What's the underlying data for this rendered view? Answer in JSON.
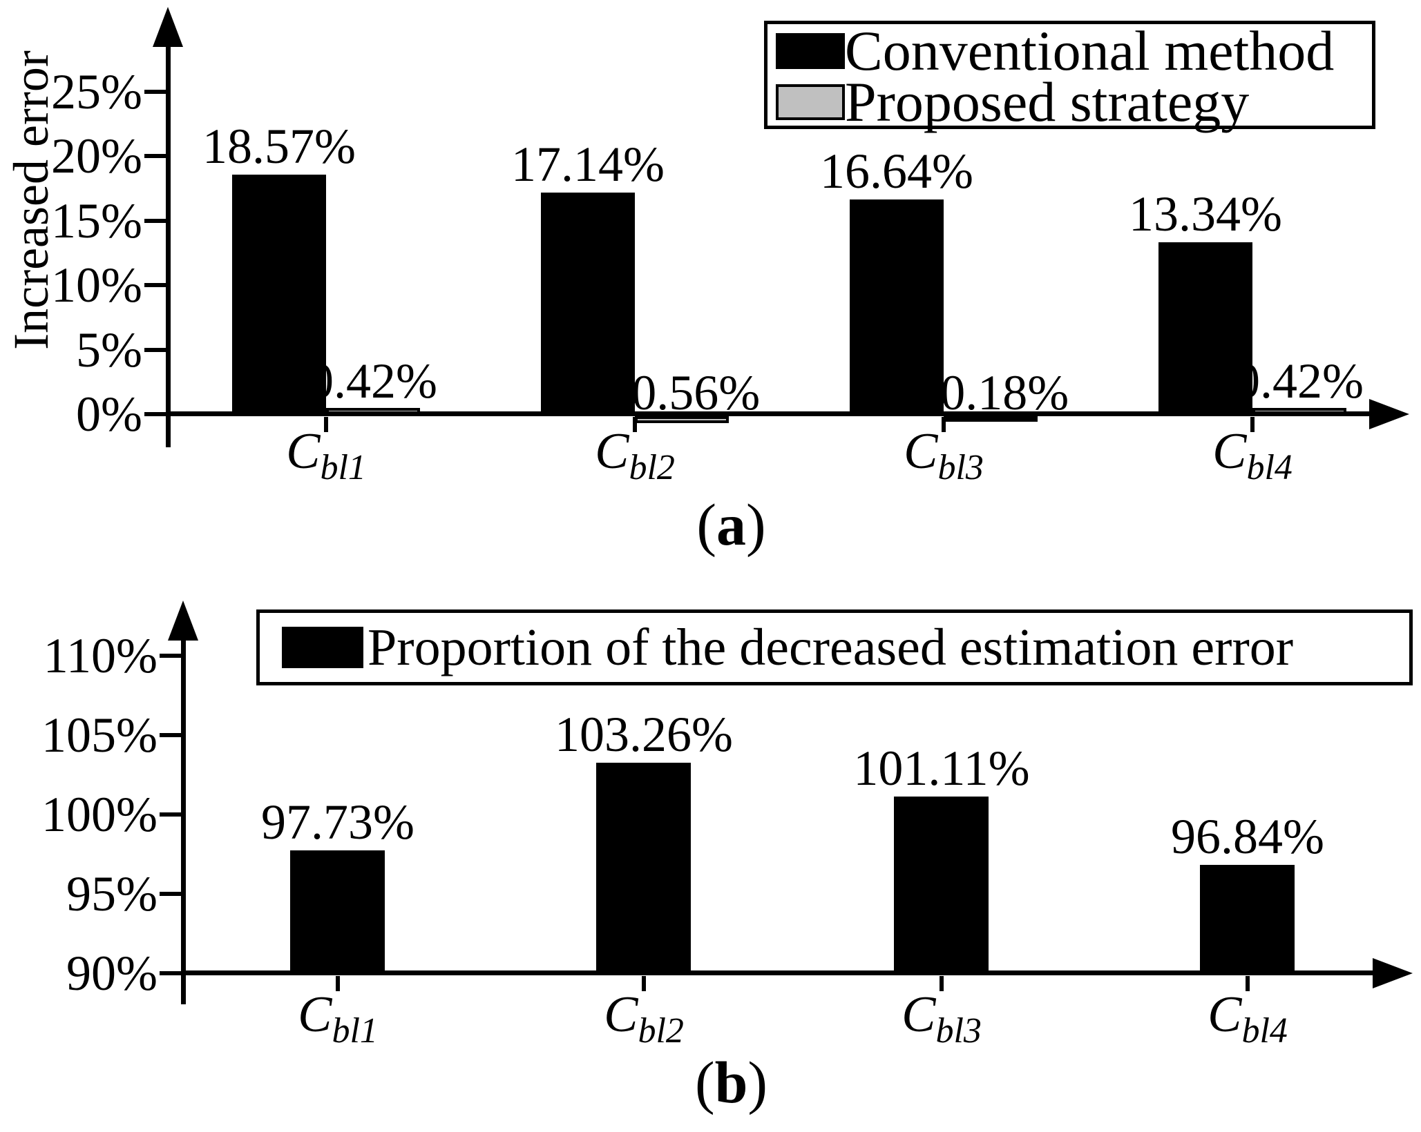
{
  "figure": {
    "background": "#ffffff",
    "caption_a": {
      "open": "(",
      "letter": "a",
      "close": ")"
    },
    "caption_b": {
      "open": "(",
      "letter": "b",
      "close": ")"
    }
  },
  "chart_data": [
    {
      "id": "a",
      "type": "bar",
      "title": "",
      "ylabel": "Increased error",
      "xlabel": "",
      "grid": false,
      "legend_position": "top-right",
      "categories": [
        {
          "base": "C",
          "sub": "bl1"
        },
        {
          "base": "C",
          "sub": "bl2"
        },
        {
          "base": "C",
          "sub": "bl3"
        },
        {
          "base": "C",
          "sub": "bl4"
        }
      ],
      "yticks": [
        0,
        5,
        10,
        15,
        20,
        25
      ],
      "ytick_labels": [
        "0%",
        "5%",
        "10%",
        "15%",
        "20%",
        "25%"
      ],
      "ylim": [
        0,
        28
      ],
      "series": [
        {
          "name": "Conventional method",
          "color": "#000000",
          "values": [
            18.57,
            17.14,
            16.64,
            13.34
          ],
          "labels": [
            "18.57%",
            "17.14%",
            "16.64%",
            "13.34%"
          ]
        },
        {
          "name": "Proposed strategy",
          "color": "#c0c0c0",
          "values": [
            0.42,
            -0.56,
            -0.18,
            0.42
          ],
          "labels": [
            "0.42%",
            "−0.56%",
            "−0.18%",
            "0.42%"
          ]
        }
      ]
    },
    {
      "id": "b",
      "type": "bar",
      "title": "",
      "ylabel": "",
      "xlabel": "",
      "grid": false,
      "legend_position": "top",
      "categories": [
        {
          "base": "C",
          "sub": "bl1"
        },
        {
          "base": "C",
          "sub": "bl2"
        },
        {
          "base": "C",
          "sub": "bl3"
        },
        {
          "base": "C",
          "sub": "bl4"
        }
      ],
      "yticks": [
        90,
        95,
        100,
        105,
        110
      ],
      "ytick_labels": [
        "90%",
        "95%",
        "100%",
        "105%",
        "110%"
      ],
      "ylim": [
        90,
        113
      ],
      "series": [
        {
          "name": "Proportion of the decreased estimation error",
          "color": "#000000",
          "values": [
            97.73,
            103.26,
            101.11,
            96.84
          ],
          "labels": [
            "97.73%",
            "103.26%",
            "101.11%",
            "96.84%"
          ]
        }
      ]
    }
  ]
}
